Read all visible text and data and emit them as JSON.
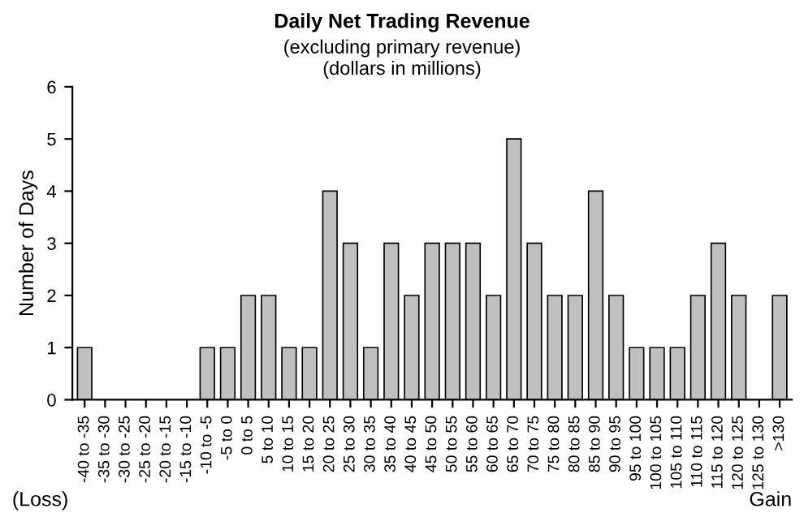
{
  "chart_data": {
    "type": "bar",
    "title": "Daily Net Trading Revenue",
    "subtitle": "(excluding primary revenue)\n(dollars in millions)",
    "ylabel": "Number of Days",
    "categories": [
      "-40 to -35",
      "-35 to -30",
      "-30 to -25",
      "-25 to -20",
      "-20 to -15",
      "-15 to -10",
      "-10 to -5",
      "-5 to 0",
      "0 to 5",
      "5 to 10",
      "10 to 15",
      "15 to 20",
      "20 to 25",
      "25 to 30",
      "30 to 35",
      "35 to 40",
      "40 to 45",
      "45 to 50",
      "50 to 55",
      "55 to 60",
      "60 to 65",
      "65 to 70",
      "70 to 75",
      "75 to 80",
      "80 to 85",
      "85 to 90",
      "90 to 95",
      "95 to 100",
      "100 to 105",
      "105 to 110",
      "110 to 115",
      "115 to 120",
      "120 to 125",
      "125 to 130",
      ">130"
    ],
    "values": [
      1,
      0,
      0,
      0,
      0,
      0,
      1,
      1,
      2,
      2,
      1,
      1,
      4,
      3,
      1,
      3,
      2,
      3,
      3,
      3,
      2,
      5,
      3,
      2,
      2,
      4,
      2,
      1,
      1,
      1,
      2,
      3,
      2,
      0,
      2
    ],
    "color": "#c0c0c0",
    "ylim": [
      0,
      6
    ],
    "yticks": [
      0,
      1,
      2,
      3,
      4,
      5,
      6
    ],
    "annotations": [
      "(Loss)",
      "Gain"
    ]
  }
}
